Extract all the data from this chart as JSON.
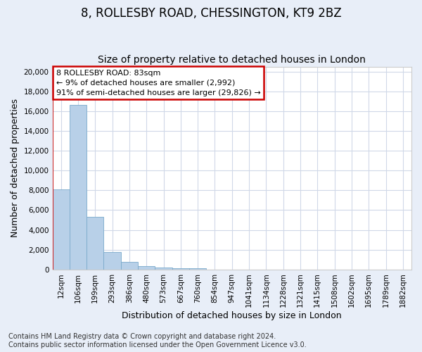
{
  "title1": "8, ROLLESBY ROAD, CHESSINGTON, KT9 2BZ",
  "title2": "Size of property relative to detached houses in London",
  "xlabel": "Distribution of detached houses by size in London",
  "ylabel": "Number of detached properties",
  "bar_labels": [
    "12sqm",
    "106sqm",
    "199sqm",
    "293sqm",
    "386sqm",
    "480sqm",
    "573sqm",
    "667sqm",
    "760sqm",
    "854sqm",
    "947sqm",
    "1041sqm",
    "1134sqm",
    "1228sqm",
    "1321sqm",
    "1415sqm",
    "1508sqm",
    "1602sqm",
    "1695sqm",
    "1789sqm",
    "1882sqm"
  ],
  "bar_heights": [
    8100,
    16600,
    5300,
    1800,
    750,
    350,
    200,
    150,
    120,
    0,
    0,
    0,
    0,
    0,
    0,
    0,
    0,
    0,
    0,
    0,
    0
  ],
  "bar_color": "#b8d0e8",
  "bar_edge_color": "#7aaacb",
  "annotation_line1": "8 ROLLESBY ROAD: 83sqm",
  "annotation_line2": "← 9% of detached houses are smaller (2,992)",
  "annotation_line3": "91% of semi-detached houses are larger (29,826) →",
  "annotation_box_color": "#ffffff",
  "annotation_box_edge": "#cc0000",
  "property_marker_color": "#cc0000",
  "ylim": [
    0,
    20500
  ],
  "yticks": [
    0,
    2000,
    4000,
    6000,
    8000,
    10000,
    12000,
    14000,
    16000,
    18000,
    20000
  ],
  "footer1": "Contains HM Land Registry data © Crown copyright and database right 2024.",
  "footer2": "Contains public sector information licensed under the Open Government Licence v3.0.",
  "bg_color": "#e8eef8",
  "plot_bg_color": "#ffffff",
  "grid_color": "#d0d8e8",
  "title1_fontsize": 12,
  "title2_fontsize": 10,
  "tick_fontsize": 7.5,
  "ylabel_fontsize": 9,
  "xlabel_fontsize": 9,
  "footer_fontsize": 7
}
